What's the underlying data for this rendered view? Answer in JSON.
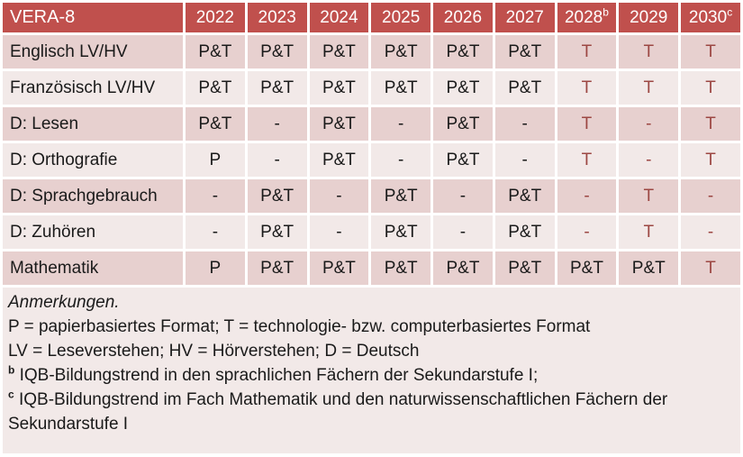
{
  "table": {
    "corner_label": "VERA-8",
    "years": [
      "2022",
      "2023",
      "2024",
      "2025",
      "2026",
      "2027",
      "2028",
      "2029",
      "2030"
    ],
    "year_superscripts": [
      "",
      "",
      "",
      "",
      "",
      "",
      "b",
      "",
      "c"
    ],
    "rows": [
      {
        "label": "Englisch LV/HV",
        "values": [
          "P&T",
          "P&T",
          "P&T",
          "P&T",
          "P&T",
          "P&T",
          "T",
          "T",
          "T"
        ]
      },
      {
        "label": "Französisch LV/HV",
        "values": [
          "P&T",
          "P&T",
          "P&T",
          "P&T",
          "P&T",
          "P&T",
          "T",
          "T",
          "T"
        ]
      },
      {
        "label": "D: Lesen",
        "values": [
          "P&T",
          "-",
          "P&T",
          "-",
          "P&T",
          "-",
          "T",
          "-",
          "T"
        ]
      },
      {
        "label": "D: Orthografie",
        "values": [
          "P",
          "-",
          "P&T",
          "-",
          "P&T",
          "-",
          "T",
          "-",
          "T"
        ]
      },
      {
        "label": "D: Sprachgebrauch",
        "values": [
          "-",
          "P&T",
          "-",
          "P&T",
          "-",
          "P&T",
          "-",
          "T",
          "-"
        ]
      },
      {
        "label": "D: Zuhören",
        "values": [
          "-",
          "P&T",
          "-",
          "P&T",
          "-",
          "P&T",
          "-",
          "T",
          "-"
        ]
      },
      {
        "label": "Mathematik",
        "values": [
          "P",
          "P&T",
          "P&T",
          "P&T",
          "P&T",
          "P&T",
          "P&T",
          "P&T",
          "T"
        ]
      }
    ]
  },
  "notes": {
    "heading": "Anmerkungen.",
    "line_formats": "P = papierbasiertes Format; T = technologie- bzw. computerbasiertes Format",
    "line_abbreviations": "LV = Leseverstehen; HV = Hörverstehen; D = Deutsch",
    "footnote_b_marker": "b",
    "footnote_b_text": "IQB-Bildungstrend in den sprachlichen Fächern der Sekundarstufe I;",
    "footnote_c_marker": "c",
    "footnote_c_text": "IQB-Bildungstrend im Fach Mathematik und den naturwissenschaftlichen Fächern der Sekundarstufe I"
  },
  "colors": {
    "header_bg": "#C0504D",
    "header_text": "#FFFFFF",
    "row_dark_bg": "#E7D0CF",
    "row_light_bg": "#F2E9E8",
    "body_text": "#1A1A1A",
    "accent_text": "#9C4743"
  }
}
